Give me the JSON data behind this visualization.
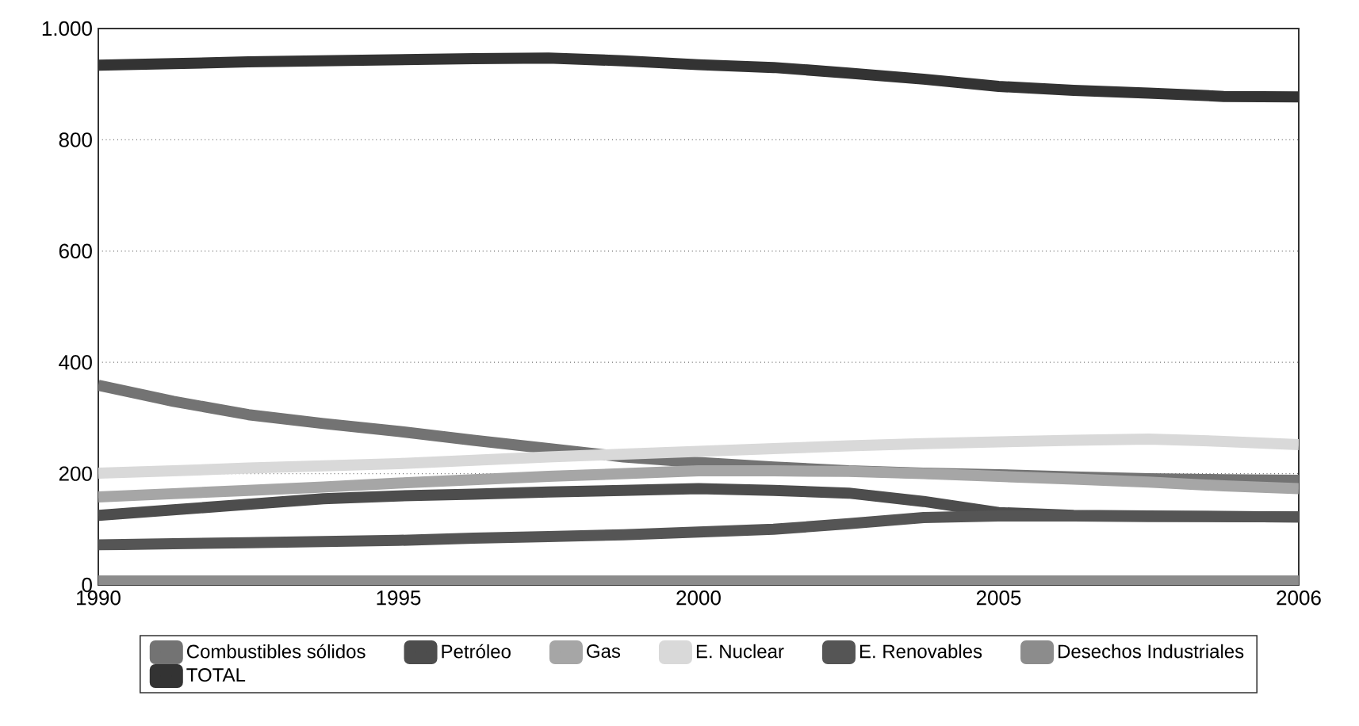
{
  "chart_data": {
    "type": "line",
    "categories": [
      "1990",
      null,
      null,
      null,
      "1995",
      null,
      null,
      null,
      "2000",
      null,
      null,
      null,
      "2005",
      null,
      null,
      null,
      "2006"
    ],
    "ylim": [
      0,
      1000
    ],
    "yticks": [
      0,
      200,
      400,
      600,
      800,
      {
        "value": 1000,
        "label": "1.000"
      }
    ],
    "grid": "y",
    "legend": "bottom",
    "marker": "none",
    "line_style": "solid",
    "series": [
      {
        "name": "Combustibles sólidos",
        "color": "#737373",
        "values": [
          359,
          330,
          306,
          290,
          276,
          260,
          245,
          230,
          220,
          212,
          205,
          201,
          198,
          194,
          191,
          189,
          188
        ]
      },
      {
        "name": "Petróleo",
        "color": "#4d4d4d",
        "values": [
          125,
          135,
          145,
          155,
          160,
          163,
          167,
          170,
          173,
          170,
          165,
          150,
          130,
          125,
          124,
          123,
          122
        ]
      },
      {
        "name": "Gas",
        "color": "#a6a6a6",
        "values": [
          158,
          164,
          170,
          176,
          183,
          189,
          195,
          200,
          205,
          205,
          204,
          200,
          195,
          190,
          185,
          178,
          173
        ]
      },
      {
        "name": "E. Nuclear",
        "color": "#d9d9d9",
        "values": [
          201,
          205,
          210,
          214,
          218,
          224,
          230,
          235,
          240,
          245,
          250,
          254,
          257,
          260,
          262,
          258,
          252
        ]
      },
      {
        "name": "E. Renovables",
        "color": "#555555",
        "values": [
          72,
          74,
          76,
          78,
          80,
          84,
          87,
          90,
          95,
          100,
          110,
          121,
          124,
          124,
          123,
          123,
          122
        ]
      },
      {
        "name": "Desechos Industriales",
        "color": "#8c8c8c",
        "values": [
          7,
          7,
          7,
          7,
          7,
          7,
          7,
          7,
          7,
          7,
          7,
          7,
          7,
          7,
          7,
          7,
          7
        ]
      },
      {
        "name": "TOTAL",
        "color": "#333333",
        "values": [
          934,
          937,
          940,
          942,
          944,
          946,
          947,
          942,
          935,
          930,
          920,
          909,
          896,
          889,
          884,
          878,
          877
        ]
      }
    ]
  }
}
